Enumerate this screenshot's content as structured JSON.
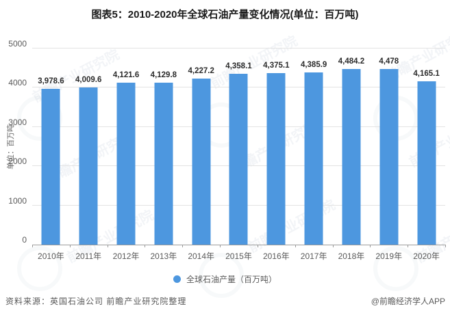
{
  "title": "图表5：2010-2020年全球石油产量变化情况(单位：百万吨)",
  "chart_data": {
    "type": "bar",
    "title": "图表5：2010-2020年全球石油产量变化情况(单位：百万吨)",
    "categories": [
      "2010年",
      "2011年",
      "2012年",
      "2013年",
      "2014年",
      "2015年",
      "2016年",
      "2017年",
      "2018年",
      "2019年",
      "2020年"
    ],
    "values": [
      3978.6,
      4009.6,
      4121.6,
      4129.8,
      4227.2,
      4358.1,
      4375.1,
      4385.9,
      4484.2,
      4478,
      4165.1
    ],
    "value_labels": [
      "3,978.6",
      "4,009.6",
      "4,121.6",
      "4,129.8",
      "4,227.2",
      "4,358.1",
      "4,375.1",
      "4,385.9",
      "4,484.2",
      "4,478",
      "4,165.1"
    ],
    "series_name": "全球石油产量（百万吨）",
    "xlabel": "",
    "ylabel": "单位：百万吨",
    "ylim": [
      0,
      5000
    ],
    "yticks": [
      "0",
      "1000",
      "2000",
      "3000",
      "4000",
      "5000"
    ],
    "grid": true,
    "legend_position": "bottom",
    "bar_color": "#4D97DF"
  },
  "y_axis": {
    "title": "单位：百万吨"
  },
  "legend": {
    "label": "全球石油产量（百万吨）",
    "marker_color": "#4D97DF"
  },
  "footer": {
    "source": "资料来源：英国石油公司 前瞻产业研究院整理",
    "credit": "@前瞻经济学人APP"
  },
  "watermark": {
    "text": "前瞻产业研究院"
  }
}
